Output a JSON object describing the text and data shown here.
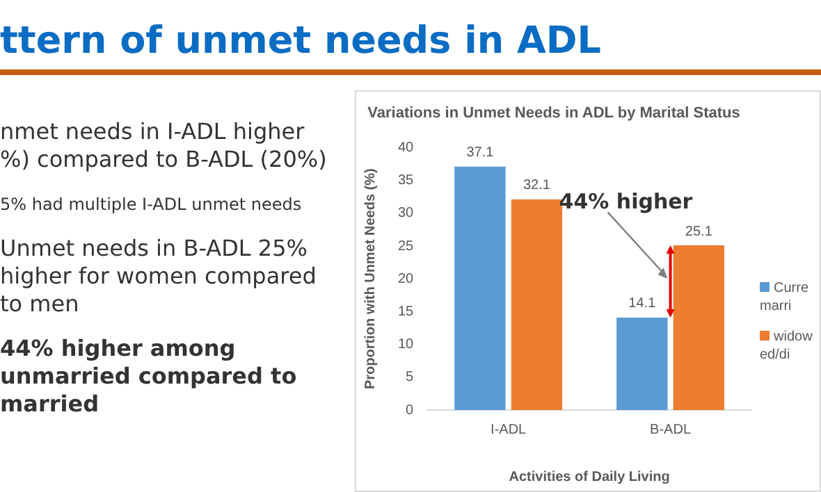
{
  "chart_data": {
    "type": "bar",
    "title": "Variations in Unmet Needs in ADL by Marital Status",
    "xlabel": "Activities of Daily Living",
    "ylabel": "Proportion with Unmet Needs (%)",
    "categories": [
      "I-ADL",
      "B-ADL"
    ],
    "series": [
      {
        "name": "Curre marri",
        "color": "#5b9bd5",
        "values": [
          37.1,
          14.1
        ]
      },
      {
        "name": "widow ed/di",
        "color": "#ed7d31",
        "values": [
          32.1,
          25.1
        ]
      }
    ],
    "ylim": [
      0,
      40
    ],
    "yticks": [
      0,
      5,
      10,
      15,
      20,
      25,
      30,
      35,
      40
    ],
    "grid": false,
    "legend": "right",
    "data_labels": true,
    "annotations": [
      "ttern of unmet needs in ADL",
      "nmet needs in I-ADL higher %) compared to B-ADL (20%)",
      "5% had multiple I-ADL unmet needs",
      "Unmet needs in B-ADL 25% higher for women compared to men",
      "44% higher among unmarried compared to married",
      {
        "text": "44% higher",
        "x": "B-ADL",
        "y": 20
      }
    ]
  }
}
